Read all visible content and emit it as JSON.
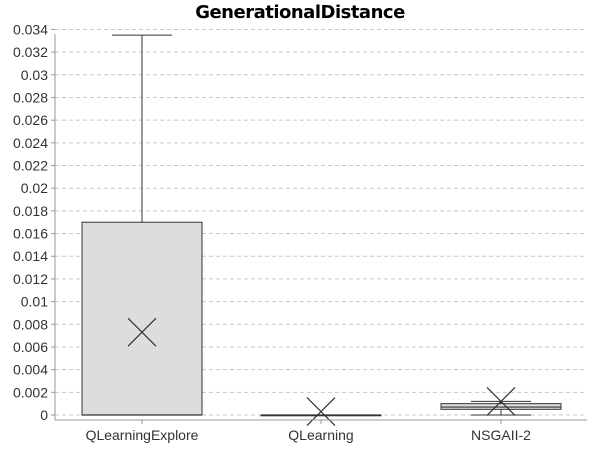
{
  "chart_data": {
    "type": "box",
    "title": "GenerationalDistance",
    "xlabel": "",
    "ylabel": "",
    "ylim": [
      0,
      0.035
    ],
    "yticks": [
      "0",
      "0.002",
      "0.004",
      "0.006",
      "0.008",
      "0.01",
      "0.012",
      "0.014",
      "0.016",
      "0.018",
      "0.02",
      "0.022",
      "0.024",
      "0.026",
      "0.028",
      "0.03",
      "0.032",
      "0.034"
    ],
    "grid": "horizontal dashed",
    "categories": [
      "QLearningExplore",
      "QLearning",
      "NSGAII-2"
    ],
    "boxes": [
      {
        "name": "QLearningExplore",
        "min": 0.0,
        "q1": 0.0,
        "median": 0.0,
        "q3": 0.017,
        "max": 0.0335,
        "mean": 0.0073
      },
      {
        "name": "QLearning",
        "min": 0.0,
        "q1": 0.0,
        "median": 0.0,
        "q3": 0.0,
        "max": 0.0,
        "mean": 0.0003
      },
      {
        "name": "NSGAII-2",
        "min": 0.0,
        "q1": 0.0005,
        "median": 0.0007,
        "q3": 0.001,
        "max": 0.0012,
        "mean": 0.0012
      }
    ],
    "colors": {
      "box_fill": "#dddddd",
      "box_stroke": "#333333",
      "grid": "#c8c8c8"
    }
  }
}
